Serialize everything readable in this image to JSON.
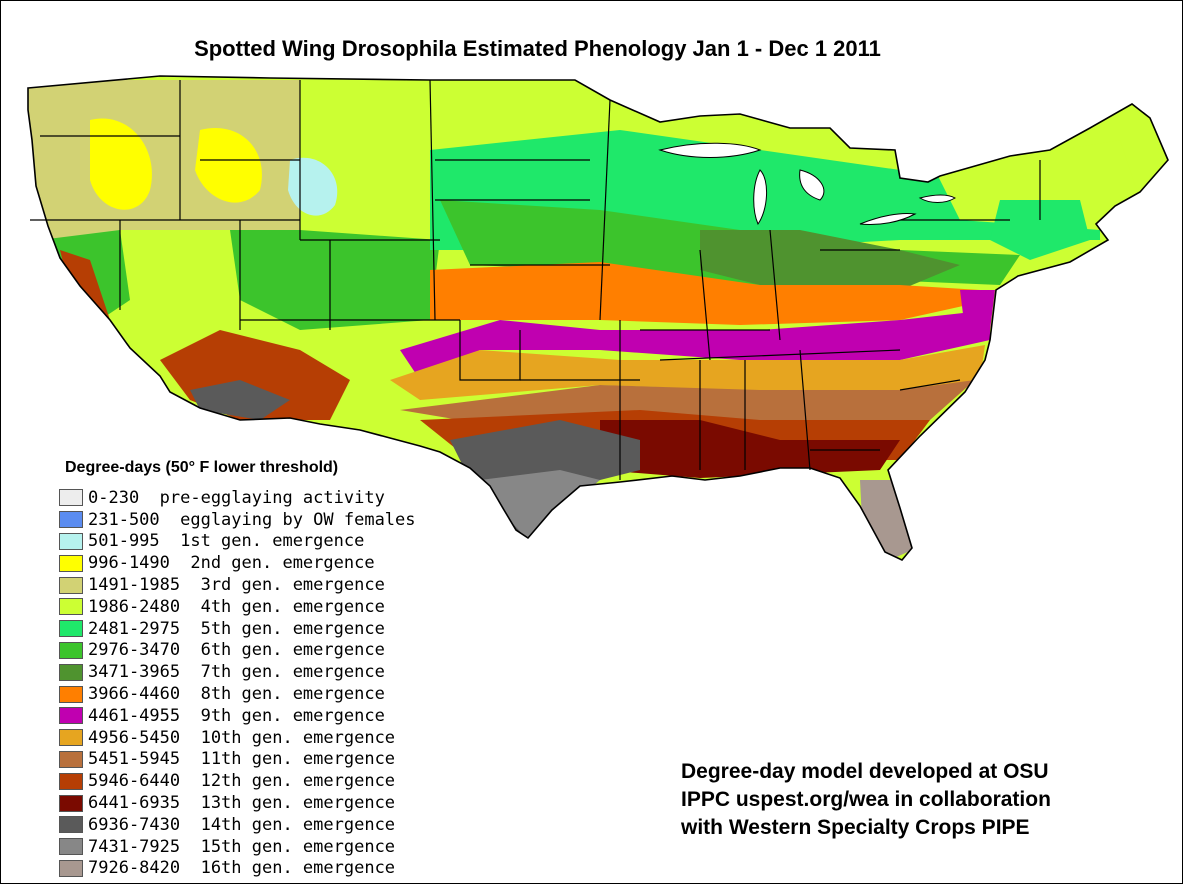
{
  "title": "Spotted Wing Drosophila Estimated Phenology Jan 1 - Dec 1 2011",
  "legend": {
    "heading": "Degree-days (50° F lower threshold)",
    "items": [
      {
        "range": "0-230",
        "label": "pre-egglaying activity",
        "color": "#ededed"
      },
      {
        "range": "231-500",
        "label": "egglaying by OW females",
        "color": "#5b8cf0"
      },
      {
        "range": "501-995",
        "label": "1st gen. emergence",
        "color": "#b6f2ee"
      },
      {
        "range": "996-1490",
        "label": "2nd gen. emergence",
        "color": "#ffff00"
      },
      {
        "range": "1491-1985",
        "label": "3rd gen. emergence",
        "color": "#d2d274"
      },
      {
        "range": "1986-2480",
        "label": "4th gen. emergence",
        "color": "#ccff33"
      },
      {
        "range": "2481-2975",
        "label": "5th gen. emergence",
        "color": "#1fe86a"
      },
      {
        "range": "2976-3470",
        "label": "6th gen. emergence",
        "color": "#3cc42c"
      },
      {
        "range": "3471-3965",
        "label": "7th gen. emergence",
        "color": "#4f932f"
      },
      {
        "range": "3966-4460",
        "label": "8th gen. emergence",
        "color": "#ff7f00"
      },
      {
        "range": "4461-4955",
        "label": "9th gen. emergence",
        "color": "#c000b0"
      },
      {
        "range": "4956-5450",
        "label": "10th gen. emergence",
        "color": "#e6a520"
      },
      {
        "range": "5451-5945",
        "label": "11th gen. emergence",
        "color": "#b8703c"
      },
      {
        "range": "5946-6440",
        "label": "12th gen. emergence",
        "color": "#b63e04"
      },
      {
        "range": "6441-6935",
        "label": "13th gen. emergence",
        "color": "#7a0a00"
      },
      {
        "range": "6936-7430",
        "label": "14th gen. emergence",
        "color": "#5a5a5a"
      },
      {
        "range": "7431-7925",
        "label": "15th gen. emergence",
        "color": "#878787"
      },
      {
        "range": "7926-8420",
        "label": "16th gen. emergence",
        "color": "#a89890"
      }
    ]
  },
  "credit": {
    "line1": "Degree-day model developed at OSU",
    "line2": "IPPC uspest.org/wea in collaboration",
    "line3": "with Western Specialty Crops PIPE"
  }
}
